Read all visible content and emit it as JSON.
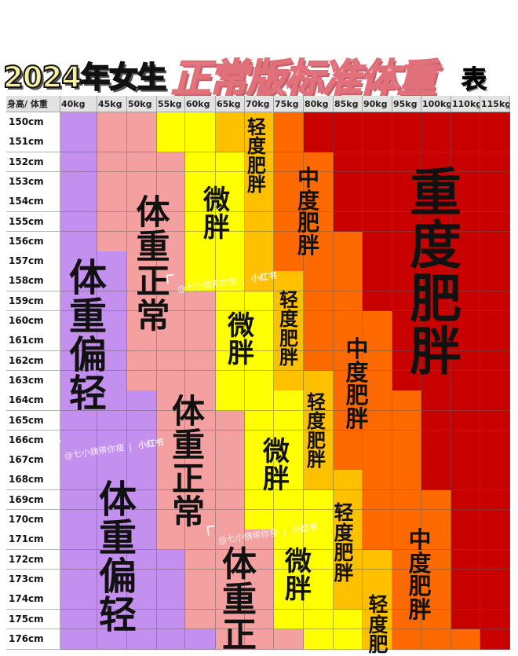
{
  "title": {
    "part1": "2024年女生",
    "part2": "正常版标准体重",
    "part3": "表"
  },
  "chart_data": {
    "type": "table",
    "corner_label": "身高/ 体重",
    "columns": [
      "40kg",
      "45kg",
      "50kg",
      "55kg",
      "60kg",
      "65kg",
      "70kg",
      "75kg",
      "80kg",
      "85kg",
      "90kg",
      "95kg",
      "100kg",
      "110kg",
      "115kg"
    ],
    "categories": [
      {
        "label": "体重偏轻",
        "color": "#c490f0"
      },
      {
        "label": "体重正常",
        "color": "#f4a0a0"
      },
      {
        "label": "微胖",
        "color": "#ffff00"
      },
      {
        "label": "轻度肥胖",
        "color": "#ffc000"
      },
      {
        "label": "中度肥胖",
        "color": "#ff6a00"
      },
      {
        "label": "重度肥胖",
        "color": "#c80000"
      }
    ],
    "rows": [
      {
        "height": "150cm",
        "counts": [
          1,
          2,
          2,
          2,
          1,
          7
        ]
      },
      {
        "height": "151cm",
        "counts": [
          1,
          2,
          2,
          2,
          1,
          7
        ]
      },
      {
        "height": "152cm",
        "counts": [
          1,
          3,
          2,
          1,
          2,
          6
        ]
      },
      {
        "height": "153cm",
        "counts": [
          1,
          3,
          2,
          1,
          2,
          6
        ]
      },
      {
        "height": "154cm",
        "counts": [
          1,
          3,
          2,
          1,
          2,
          6
        ]
      },
      {
        "height": "155cm",
        "counts": [
          1,
          3,
          2,
          1,
          2,
          6
        ]
      },
      {
        "height": "156cm",
        "counts": [
          1,
          3,
          2,
          1,
          3,
          5
        ]
      },
      {
        "height": "157cm",
        "counts": [
          2,
          2,
          2,
          1,
          3,
          5
        ]
      },
      {
        "height": "158cm",
        "counts": [
          2,
          2,
          2,
          2,
          2,
          5
        ]
      },
      {
        "height": "159cm",
        "counts": [
          2,
          3,
          2,
          1,
          2,
          5
        ]
      },
      {
        "height": "160cm",
        "counts": [
          2,
          3,
          2,
          1,
          3,
          4
        ]
      },
      {
        "height": "161cm",
        "counts": [
          2,
          3,
          2,
          1,
          3,
          4
        ]
      },
      {
        "height": "162cm",
        "counts": [
          2,
          3,
          2,
          1,
          3,
          4
        ]
      },
      {
        "height": "163cm",
        "counts": [
          2,
          3,
          2,
          2,
          2,
          4
        ]
      },
      {
        "height": "164cm",
        "counts": [
          3,
          2,
          3,
          1,
          3,
          3
        ]
      },
      {
        "height": "165cm",
        "counts": [
          3,
          3,
          2,
          1,
          3,
          3
        ]
      },
      {
        "height": "166cm",
        "counts": [
          3,
          3,
          2,
          1,
          3,
          3
        ]
      },
      {
        "height": "167cm",
        "counts": [
          3,
          3,
          2,
          1,
          3,
          3
        ]
      },
      {
        "height": "168cm",
        "counts": [
          3,
          3,
          2,
          2,
          2,
          3
        ]
      },
      {
        "height": "169cm",
        "counts": [
          3,
          3,
          3,
          1,
          3,
          2
        ]
      },
      {
        "height": "170cm",
        "counts": [
          3,
          3,
          3,
          1,
          3,
          2
        ]
      },
      {
        "height": "171cm",
        "counts": [
          3,
          4,
          2,
          1,
          3,
          2
        ]
      },
      {
        "height": "172cm",
        "counts": [
          4,
          3,
          2,
          2,
          2,
          2
        ]
      },
      {
        "height": "173cm",
        "counts": [
          4,
          3,
          2,
          2,
          2,
          2
        ]
      },
      {
        "height": "174cm",
        "counts": [
          4,
          3,
          2,
          2,
          2,
          2
        ]
      },
      {
        "height": "175cm",
        "counts": [
          4,
          3,
          3,
          1,
          2,
          2
        ]
      },
      {
        "height": "176cm",
        "counts": [
          5,
          3,
          2,
          1,
          3,
          1
        ]
      }
    ],
    "region_labels": [
      "体重偏轻",
      "体重正常",
      "微胖",
      "轻度肥胖",
      "中度肥胖",
      "重度肥胖",
      "微胖",
      "轻度肥胖",
      "中度肥胖",
      "体重正常",
      "微胖",
      "轻度肥胖",
      "体重偏轻",
      "轻度肥胖",
      "微胖",
      "中度肥胖",
      "体重正",
      "轻度肥"
    ]
  },
  "watermark": {
    "handle": "@七小姨带你瘦",
    "separator": "|",
    "brand": "小红书"
  }
}
